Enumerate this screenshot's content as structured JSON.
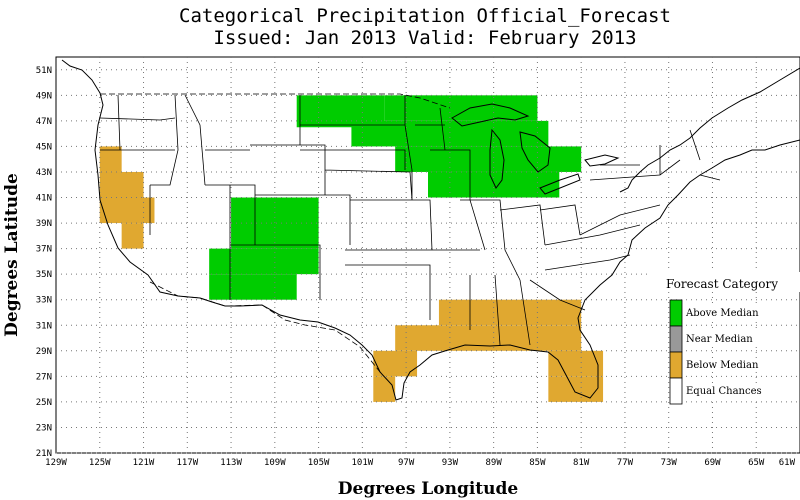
{
  "title_line1": "Categorical Precipitation Official_Forecast",
  "title_line2": "Issued: Jan 2013 Valid: February 2013",
  "x_axis_label": "Degrees Longitude",
  "y_axis_label": "Degrees Latitude",
  "x_ticks": [
    "129W",
    "125W",
    "121W",
    "117W",
    "113W",
    "109W",
    "105W",
    "101W",
    "97W",
    "93W",
    "89W",
    "85W",
    "81W",
    "77W",
    "73W",
    "69W",
    "65W",
    "61W"
  ],
  "y_ticks": [
    "51N",
    "49N",
    "47N",
    "45N",
    "43N",
    "41N",
    "39N",
    "37N",
    "35N",
    "33N",
    "31N",
    "29N",
    "27N",
    "25N",
    "23N",
    "21N"
  ],
  "legend": {
    "title": "Forecast Category",
    "items": [
      {
        "label": "Above Median",
        "color": "#00cc00"
      },
      {
        "label": "Near Median",
        "color": "#999999"
      },
      {
        "label": "Below Median",
        "color": "#e0a830"
      },
      {
        "label": "Equal Chances",
        "color": "#ffffff"
      }
    ]
  },
  "map_data": {
    "lon_range": [
      -129,
      -61
    ],
    "lat_range": [
      21,
      52
    ],
    "cell_size_deg": 2,
    "above_median_regions": [
      {
        "lon": [
          -107,
          -99
        ],
        "lat": [
          46.5,
          49
        ]
      },
      {
        "lon": [
          -99,
          -85
        ],
        "lat": [
          47,
          49
        ]
      },
      {
        "lon": [
          -102,
          -84
        ],
        "lat": [
          45,
          47
        ]
      },
      {
        "lon": [
          -98,
          -81
        ],
        "lat": [
          43,
          45
        ]
      },
      {
        "lon": [
          -95,
          -83
        ],
        "lat": [
          41,
          43
        ]
      },
      {
        "lon": [
          -113,
          -105
        ],
        "lat": [
          37,
          41
        ]
      },
      {
        "lon": [
          -115,
          -105
        ],
        "lat": [
          35,
          37
        ]
      },
      {
        "lon": [
          -115,
          -107
        ],
        "lat": [
          33,
          35
        ]
      }
    ],
    "below_median_regions": [
      {
        "lon": [
          -125,
          -123
        ],
        "lat": [
          43,
          45
        ]
      },
      {
        "lon": [
          -125,
          -121
        ],
        "lat": [
          41,
          43
        ]
      },
      {
        "lon": [
          -125,
          -120
        ],
        "lat": [
          39,
          41
        ]
      },
      {
        "lon": [
          -123,
          -121
        ],
        "lat": [
          37,
          39
        ]
      },
      {
        "lon": [
          -94,
          -81
        ],
        "lat": [
          31,
          33
        ]
      },
      {
        "lon": [
          -98,
          -81
        ],
        "lat": [
          29,
          31
        ]
      },
      {
        "lon": [
          -100,
          -96
        ],
        "lat": [
          27,
          29
        ]
      },
      {
        "lon": [
          -84,
          -79
        ],
        "lat": [
          27,
          29
        ]
      },
      {
        "lon": [
          -100,
          -98
        ],
        "lat": [
          25,
          27
        ]
      },
      {
        "lon": [
          -84,
          -79
        ],
        "lat": [
          25,
          27
        ]
      }
    ]
  }
}
